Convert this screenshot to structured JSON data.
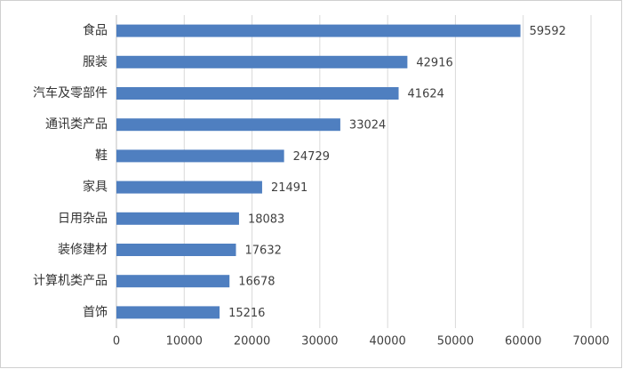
{
  "chart_data": {
    "type": "bar",
    "orientation": "horizontal",
    "categories": [
      "食品",
      "服装",
      "汽车及零部件",
      "通讯类产品",
      "鞋",
      "家具",
      "日用杂品",
      "装修建材",
      "计算机类产品",
      "首饰"
    ],
    "values": [
      59592,
      42916,
      41624,
      33024,
      24729,
      21491,
      18083,
      17632,
      16678,
      15216
    ],
    "color": "#4f7fc0",
    "xlim": [
      0,
      70000
    ],
    "xticks": [
      0,
      10000,
      20000,
      30000,
      40000,
      50000,
      60000,
      70000
    ],
    "grid": true
  }
}
